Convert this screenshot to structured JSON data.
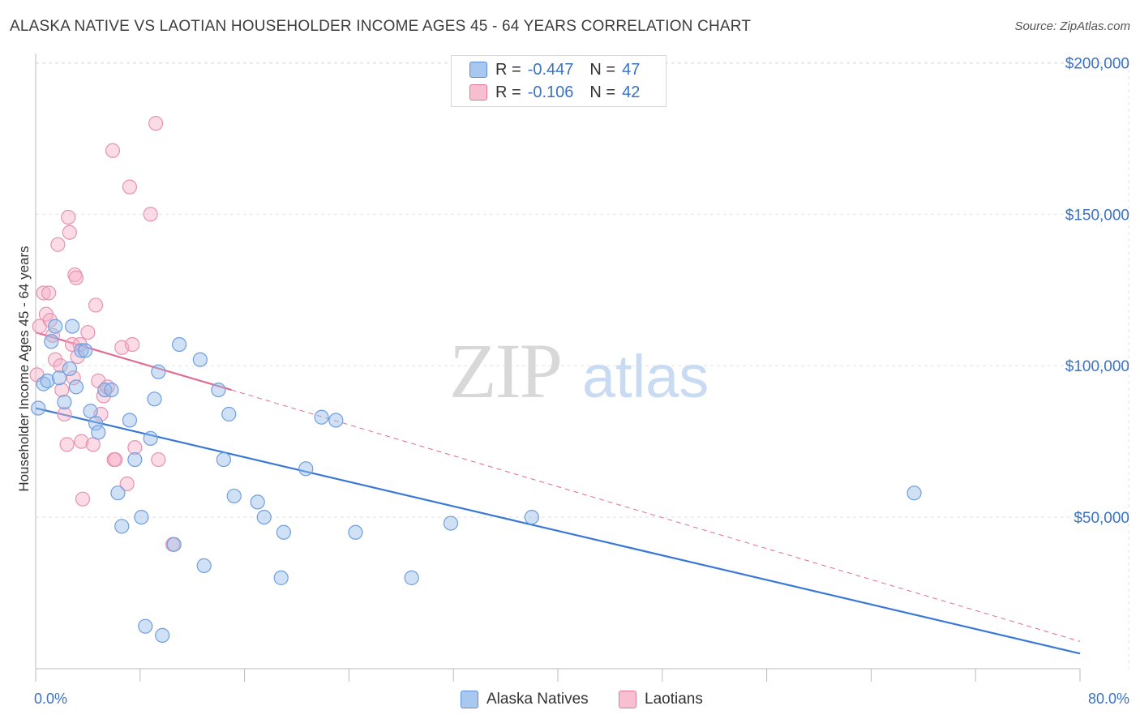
{
  "title": "ALASKA NATIVE VS LAOTIAN HOUSEHOLDER INCOME AGES 45 - 64 YEARS CORRELATION CHART",
  "source": "Source: ZipAtlas.com",
  "watermark": {
    "zip": "ZIP",
    "atlas": "atlas"
  },
  "legend_top": [
    {
      "r_label": "R =",
      "r_value": "-0.447",
      "n_label": "N =",
      "n_value": "47",
      "color": "#a9c8f0",
      "border": "#5b8fd6"
    },
    {
      "r_label": "R =",
      "r_value": "-0.106",
      "n_label": "N =",
      "n_value": "42",
      "color": "#f7bfd0",
      "border": "#e07a9b"
    }
  ],
  "legend_bottom": [
    {
      "label": "Alaska Natives",
      "color": "#a9c8f0",
      "border": "#5b8fd6"
    },
    {
      "label": "Laotians",
      "color": "#f7bfd0",
      "border": "#e07a9b"
    }
  ],
  "colors": {
    "blue": "#3a78d4",
    "pink": "#e06b93",
    "blue_fill": "rgba(150,188,236,0.45)",
    "pink_fill": "rgba(246,176,198,0.45)"
  },
  "chart_data": {
    "type": "scatter",
    "xlabel": "",
    "ylabel": "Householder Income Ages 45 - 64 years",
    "xlim": [
      0,
      80
    ],
    "ylim": [
      0,
      210000
    ],
    "x_tick_labels": [
      "0.0%",
      "80.0%"
    ],
    "y_ticks": [
      50000,
      100000,
      150000,
      200000
    ],
    "y_tick_labels": [
      "$50,000",
      "$100,000",
      "$150,000",
      "$200,000"
    ],
    "grid": true,
    "series": [
      {
        "name": "Alaska Natives",
        "points": [
          [
            0.2,
            86000
          ],
          [
            0.6,
            94000
          ],
          [
            0.9,
            95000
          ],
          [
            1.2,
            108000
          ],
          [
            1.5,
            113000
          ],
          [
            1.8,
            96000
          ],
          [
            2.2,
            88000
          ],
          [
            2.6,
            99000
          ],
          [
            2.8,
            113000
          ],
          [
            3.1,
            93000
          ],
          [
            3.5,
            105000
          ],
          [
            3.8,
            105000
          ],
          [
            4.2,
            85000
          ],
          [
            4.6,
            81000
          ],
          [
            4.8,
            78000
          ],
          [
            5.3,
            92000
          ],
          [
            5.8,
            92000
          ],
          [
            6.3,
            58000
          ],
          [
            6.6,
            47000
          ],
          [
            7.2,
            82000
          ],
          [
            7.6,
            69000
          ],
          [
            8.1,
            50000
          ],
          [
            8.4,
            14000
          ],
          [
            8.8,
            76000
          ],
          [
            9.1,
            89000
          ],
          [
            9.4,
            98000
          ],
          [
            9.7,
            11000
          ],
          [
            10.6,
            41000
          ],
          [
            11.0,
            107000
          ],
          [
            12.6,
            102000
          ],
          [
            12.9,
            34000
          ],
          [
            14.0,
            92000
          ],
          [
            14.4,
            69000
          ],
          [
            14.8,
            84000
          ],
          [
            15.2,
            57000
          ],
          [
            17.0,
            55000
          ],
          [
            17.5,
            50000
          ],
          [
            18.8,
            30000
          ],
          [
            19.0,
            45000
          ],
          [
            20.7,
            66000
          ],
          [
            21.9,
            83000
          ],
          [
            23.0,
            82000
          ],
          [
            24.5,
            45000
          ],
          [
            28.8,
            30000
          ],
          [
            31.8,
            48000
          ],
          [
            38.0,
            50000
          ],
          [
            67.3,
            58000
          ]
        ],
        "trend": {
          "x": [
            0,
            80
          ],
          "y": [
            86000,
            5000
          ]
        }
      },
      {
        "name": "Laotians",
        "points": [
          [
            0.1,
            97000
          ],
          [
            0.3,
            113000
          ],
          [
            0.6,
            124000
          ],
          [
            0.8,
            117000
          ],
          [
            1.0,
            124000
          ],
          [
            1.1,
            115000
          ],
          [
            1.3,
            110000
          ],
          [
            1.5,
            102000
          ],
          [
            1.7,
            140000
          ],
          [
            1.9,
            100000
          ],
          [
            2.0,
            92000
          ],
          [
            2.2,
            84000
          ],
          [
            2.4,
            74000
          ],
          [
            2.5,
            149000
          ],
          [
            2.6,
            144000
          ],
          [
            2.8,
            107000
          ],
          [
            2.9,
            96000
          ],
          [
            3.0,
            130000
          ],
          [
            3.1,
            129000
          ],
          [
            3.2,
            103000
          ],
          [
            3.4,
            107000
          ],
          [
            3.5,
            75000
          ],
          [
            3.6,
            56000
          ],
          [
            4.0,
            111000
          ],
          [
            4.4,
            74000
          ],
          [
            4.6,
            120000
          ],
          [
            4.8,
            95000
          ],
          [
            5.0,
            84000
          ],
          [
            5.2,
            90000
          ],
          [
            5.5,
            93000
          ],
          [
            5.9,
            171000
          ],
          [
            6.0,
            69000
          ],
          [
            6.1,
            69000
          ],
          [
            6.6,
            106000
          ],
          [
            7.0,
            61000
          ],
          [
            7.2,
            159000
          ],
          [
            7.4,
            107000
          ],
          [
            7.6,
            73000
          ],
          [
            8.8,
            150000
          ],
          [
            9.2,
            180000
          ],
          [
            9.4,
            69000
          ],
          [
            10.5,
            41000
          ]
        ],
        "trend_solid": {
          "x": [
            0,
            15
          ],
          "y": [
            111000,
            92000
          ]
        },
        "trend_dashed": {
          "x": [
            15,
            80
          ],
          "y": [
            92000,
            9000
          ]
        }
      }
    ]
  }
}
